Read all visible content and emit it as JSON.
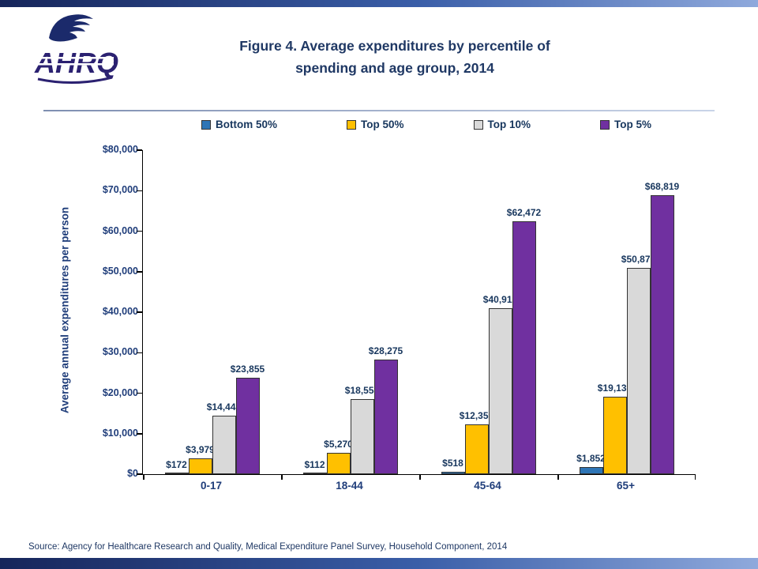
{
  "header": {
    "logo_text": "AHRQ",
    "title_line1": "Figure 4. Average expenditures by percentile of",
    "title_line2": "spending and age group, 2014"
  },
  "footer": {
    "source": "Source: Agency for Healthcare Research and Quality, Medical Expenditure Panel Survey, Household Component, 2014"
  },
  "brand_colors": {
    "title_navy": "#1F3864",
    "axis_blue": "#1F3D7A",
    "top_bar_navy": "#16255A"
  },
  "chart_data": {
    "type": "bar",
    "title": "Figure 4. Average expenditures by percentile of spending and age group, 2014",
    "categories": [
      "0-17",
      "18-44",
      "45-64",
      "65+"
    ],
    "series": [
      {
        "name": "Bottom 50%",
        "color": "#2E75B6",
        "values": [
          172,
          112,
          518,
          1852
        ],
        "labels": [
          "$172",
          "$112",
          "$518",
          "$1,852"
        ]
      },
      {
        "name": "Top 50%",
        "color": "#FFC000",
        "values": [
          3979,
          5270,
          12359,
          19139
        ],
        "labels": [
          "$3,979",
          "$5,270",
          "$12,359",
          "$19,139"
        ]
      },
      {
        "name": "Top 10%",
        "color": "#D9D9D9",
        "values": [
          14442,
          18553,
          40912,
          50876
        ],
        "labels": [
          "$14,442",
          "$18,553",
          "$40,912",
          "$50,876"
        ]
      },
      {
        "name": "Top 5%",
        "color": "#7030A0",
        "values": [
          23855,
          28275,
          62472,
          68819
        ],
        "labels": [
          "$23,855",
          "$28,275",
          "$62,472",
          "$68,819"
        ]
      }
    ],
    "xlabel": "",
    "ylabel": "Average annual expenditures per person",
    "ylim": [
      0,
      80000
    ],
    "ytick_step": 10000,
    "ytick_labels": [
      "$0",
      "$10,000",
      "$20,000",
      "$30,000",
      "$40,000",
      "$50,000",
      "$60,000",
      "$70,000",
      "$80,000"
    ],
    "grid": false,
    "legend_position": "top"
  }
}
